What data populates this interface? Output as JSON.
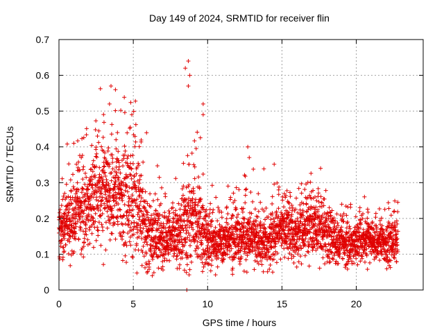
{
  "chart_data": {
    "type": "scatter",
    "title": "Day 149 of 2024, SRMTID for receiver flin",
    "xlabel": "GPS time / hours",
    "ylabel": "SRMTID / TECUs",
    "xlim": [
      0,
      24.5
    ],
    "ylim": [
      0,
      0.7
    ],
    "xticks": [
      0,
      5,
      10,
      15,
      20
    ],
    "xtick_labels": [
      "0",
      "5",
      "10",
      "15",
      "20"
    ],
    "yticks": [
      0,
      0.1,
      0.2,
      0.3,
      0.4,
      0.5,
      0.6,
      0.7
    ],
    "ytick_labels": [
      "0",
      "0.1",
      "0.2",
      "0.3",
      "0.4",
      "0.5",
      "0.6",
      "0.7"
    ],
    "grid": true,
    "marker": "plus",
    "marker_color": "#e00000",
    "x_range_of_data": [
      0,
      22.8
    ],
    "sample_count": 3300,
    "envelope": [
      {
        "x": 0.0,
        "center": 0.15,
        "spread": 0.05
      },
      {
        "x": 1.0,
        "center": 0.21,
        "spread": 0.07
      },
      {
        "x": 2.0,
        "center": 0.24,
        "spread": 0.08
      },
      {
        "x": 3.0,
        "center": 0.27,
        "spread": 0.1
      },
      {
        "x": 4.0,
        "center": 0.27,
        "spread": 0.1
      },
      {
        "x": 5.0,
        "center": 0.24,
        "spread": 0.1
      },
      {
        "x": 6.0,
        "center": 0.16,
        "spread": 0.07
      },
      {
        "x": 7.0,
        "center": 0.13,
        "spread": 0.05
      },
      {
        "x": 8.0,
        "center": 0.15,
        "spread": 0.06
      },
      {
        "x": 9.0,
        "center": 0.21,
        "spread": 0.1
      },
      {
        "x": 10.0,
        "center": 0.13,
        "spread": 0.05
      },
      {
        "x": 11.0,
        "center": 0.13,
        "spread": 0.04
      },
      {
        "x": 12.0,
        "center": 0.14,
        "spread": 0.05
      },
      {
        "x": 13.0,
        "center": 0.14,
        "spread": 0.05
      },
      {
        "x": 14.0,
        "center": 0.13,
        "spread": 0.05
      },
      {
        "x": 15.0,
        "center": 0.17,
        "spread": 0.05
      },
      {
        "x": 16.0,
        "center": 0.16,
        "spread": 0.05
      },
      {
        "x": 17.0,
        "center": 0.18,
        "spread": 0.06
      },
      {
        "x": 18.0,
        "center": 0.16,
        "spread": 0.05
      },
      {
        "x": 19.0,
        "center": 0.13,
        "spread": 0.04
      },
      {
        "x": 20.0,
        "center": 0.13,
        "spread": 0.04
      },
      {
        "x": 21.0,
        "center": 0.14,
        "spread": 0.04
      },
      {
        "x": 22.0,
        "center": 0.13,
        "spread": 0.04
      },
      {
        "x": 22.8,
        "center": 0.14,
        "spread": 0.04
      }
    ],
    "notable_points": [
      {
        "x": 3.5,
        "y": 0.57
      },
      {
        "x": 3.8,
        "y": 0.56
      },
      {
        "x": 3.4,
        "y": 0.52
      },
      {
        "x": 4.9,
        "y": 0.49
      },
      {
        "x": 8.7,
        "y": 0.64
      },
      {
        "x": 8.5,
        "y": 0.62
      },
      {
        "x": 8.8,
        "y": 0.6
      },
      {
        "x": 8.7,
        "y": 0.57
      },
      {
        "x": 9.7,
        "y": 0.52
      },
      {
        "x": 9.7,
        "y": 0.49
      },
      {
        "x": 8.6,
        "y": 0.0
      },
      {
        "x": 12.7,
        "y": 0.4
      },
      {
        "x": 12.8,
        "y": 0.37
      },
      {
        "x": 17.6,
        "y": 0.34
      },
      {
        "x": 1.0,
        "y": 0.41
      },
      {
        "x": 1.5,
        "y": 0.37
      }
    ]
  }
}
